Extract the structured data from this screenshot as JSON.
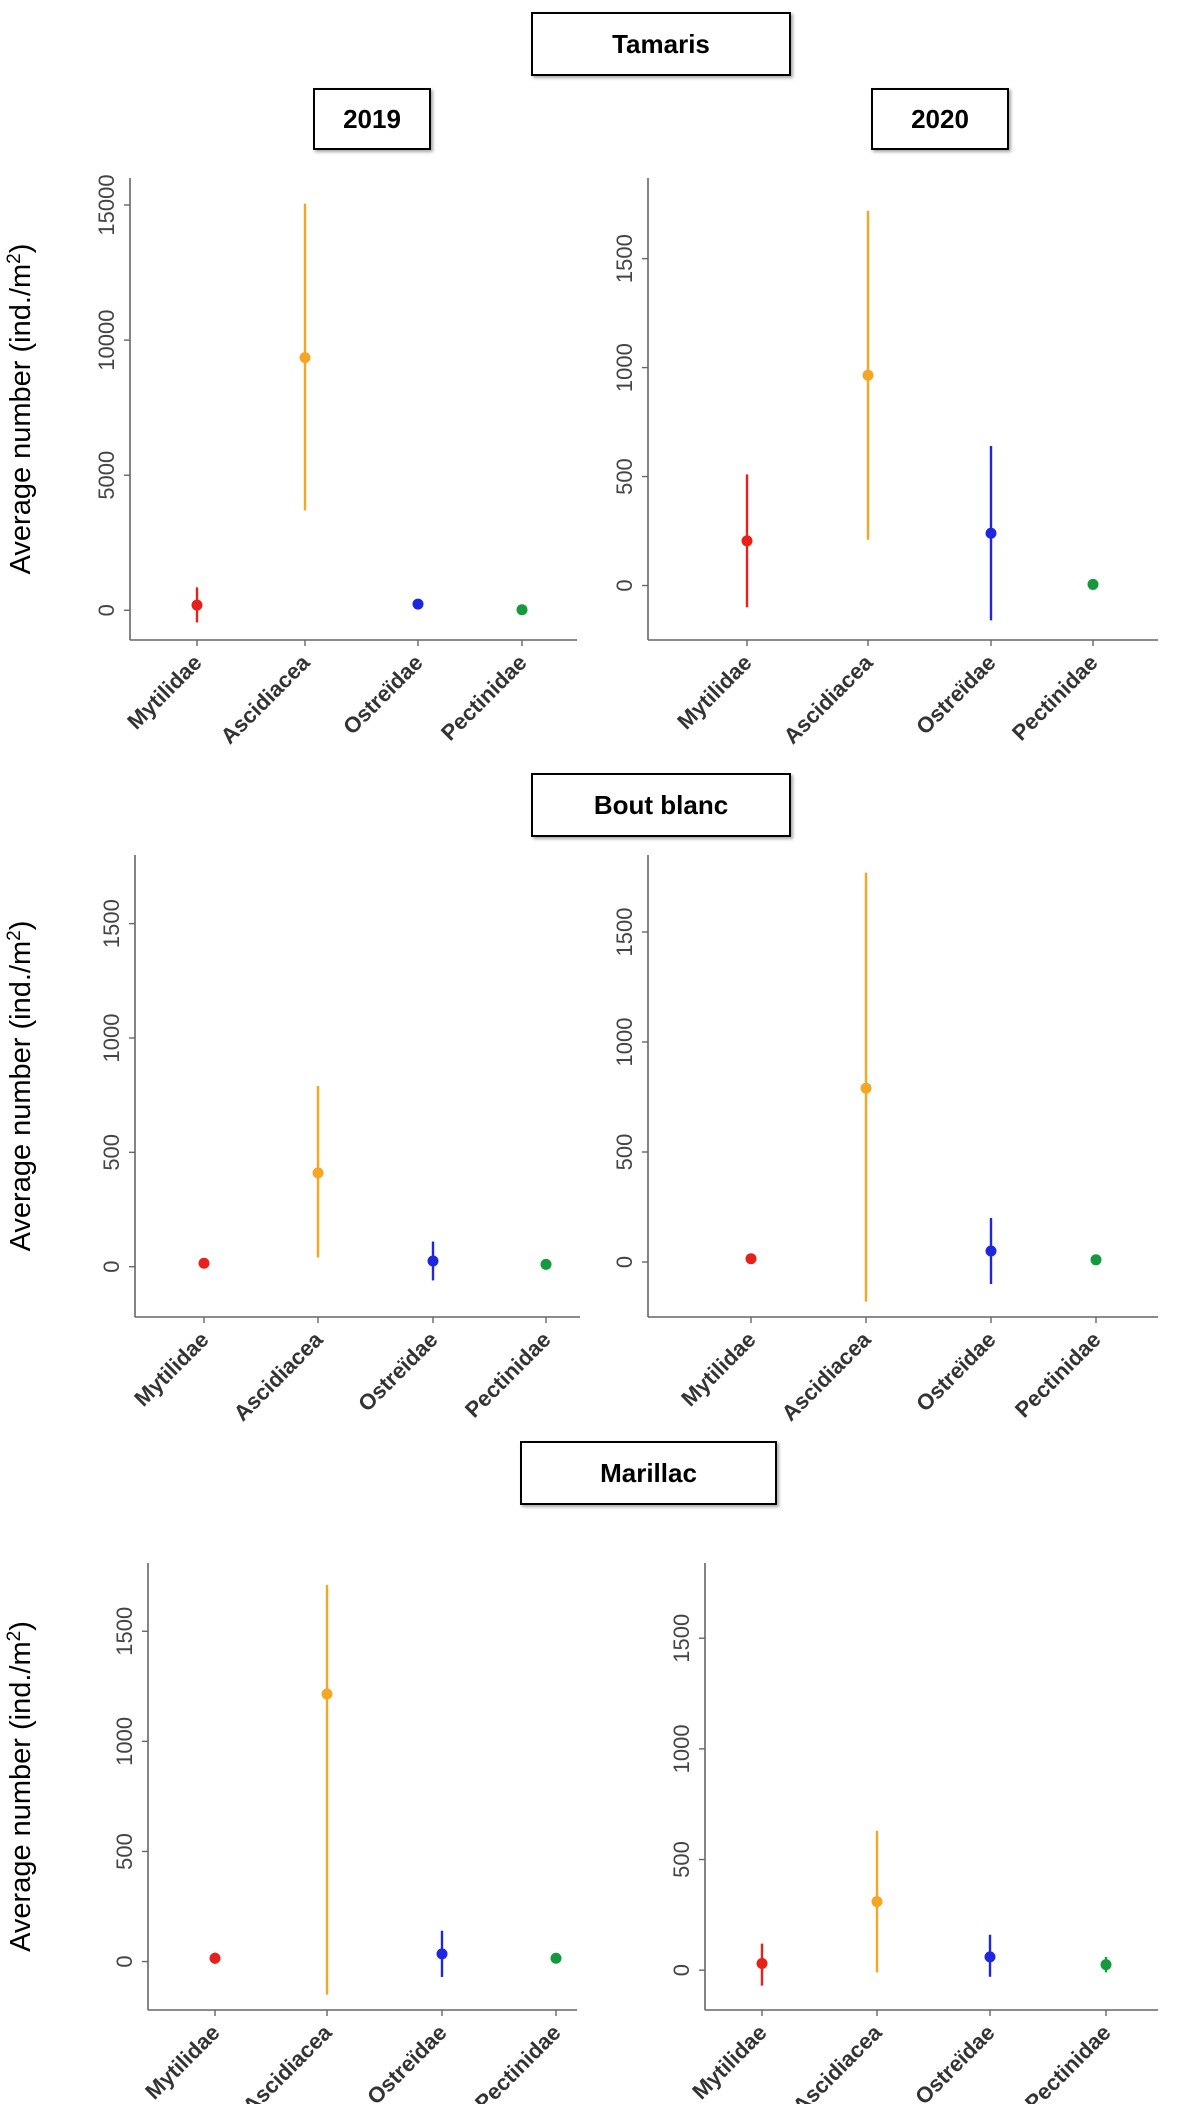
{
  "sites": {
    "tamaris": "Tamaris",
    "bout_blanc": "Bout blanc",
    "marillac": "Marillac"
  },
  "years": {
    "y2019": "2019",
    "y2020": "2020"
  },
  "colors": {
    "Mytilidae": "#e8201a",
    "Ascidiacea": "#f5a623",
    "Ostreidae": "#1f26e0",
    "Pectinidae": "#149a3c"
  },
  "chart_data": [
    {
      "type": "scatter",
      "site": "Tamaris",
      "year": "2019",
      "title": "2019",
      "xlabel": "",
      "ylabel": "Average number (ind./m2)",
      "categories": [
        "Mytilidae",
        "Ascidiacea",
        "Ostreïdae",
        "Pectinidae"
      ],
      "values": [
        190,
        9350,
        230,
        20
      ],
      "errors_low": [
        -450,
        3700,
        60,
        -30
      ],
      "errors_high": [
        850,
        15050,
        400,
        70
      ],
      "yticks": [
        0,
        5000,
        10000,
        15000
      ],
      "ylim": [
        -1100,
        16000
      ]
    },
    {
      "type": "scatter",
      "site": "Tamaris",
      "year": "2020",
      "title": "2020",
      "xlabel": "",
      "ylabel": "",
      "categories": [
        "Mytilidae",
        "Ascidiacea",
        "Ostreïdae",
        "Pectinidae"
      ],
      "values": [
        205,
        965,
        240,
        5
      ],
      "errors_low": [
        -100,
        210,
        -160,
        -5
      ],
      "errors_high": [
        510,
        1720,
        640,
        15
      ],
      "yticks": [
        0,
        500,
        1000,
        1500
      ],
      "ylim": [
        -250,
        1870
      ]
    },
    {
      "type": "scatter",
      "site": "Bout blanc",
      "year": "2019",
      "title": "",
      "xlabel": "",
      "ylabel": "Average number (ind./m2)",
      "categories": [
        "Mytilidae",
        "Ascidiacea",
        "Ostreïdae",
        "Pectinidae"
      ],
      "values": [
        15,
        410,
        25,
        10
      ],
      "errors_low": [
        0,
        40,
        -60,
        0
      ],
      "errors_high": [
        30,
        790,
        110,
        20
      ],
      "yticks": [
        0,
        500,
        1000,
        1500
      ],
      "ylim": [
        -220,
        1800
      ]
    },
    {
      "type": "scatter",
      "site": "Bout blanc",
      "year": "2020",
      "title": "",
      "xlabel": "",
      "ylabel": "",
      "categories": [
        "Mytilidae",
        "Ascidiacea",
        "Ostreïdae",
        "Pectinidae"
      ],
      "values": [
        15,
        790,
        50,
        10
      ],
      "errors_low": [
        0,
        -180,
        -100,
        0
      ],
      "errors_high": [
        30,
        1770,
        200,
        20
      ],
      "yticks": [
        0,
        500,
        1000,
        1500
      ],
      "ylim": [
        -250,
        1850
      ]
    },
    {
      "type": "scatter",
      "site": "Marillac",
      "year": "2019",
      "title": "",
      "xlabel": "",
      "ylabel": "Average number (ind./m2)",
      "categories": [
        "Mytilidae",
        "Ascidiacea",
        "Ostreïdae",
        "Pectinidae"
      ],
      "values": [
        15,
        1215,
        35,
        15
      ],
      "errors_low": [
        -10,
        -150,
        -70,
        5
      ],
      "errors_high": [
        40,
        1710,
        140,
        25
      ],
      "yticks": [
        0,
        500,
        1000,
        1500
      ],
      "ylim": [
        -220,
        1810
      ]
    },
    {
      "type": "scatter",
      "site": "Marillac",
      "year": "2020",
      "title": "",
      "xlabel": "",
      "ylabel": "",
      "categories": [
        "Mytilidae",
        "Ascidiacea",
        "Ostreïdae",
        "Pectinidae"
      ],
      "values": [
        30,
        310,
        60,
        25
      ],
      "errors_low": [
        -70,
        -10,
        -30,
        -10
      ],
      "errors_high": [
        120,
        630,
        160,
        60
      ],
      "yticks": [
        0,
        500,
        1000,
        1500
      ],
      "ylim": [
        -180,
        1840
      ]
    }
  ]
}
